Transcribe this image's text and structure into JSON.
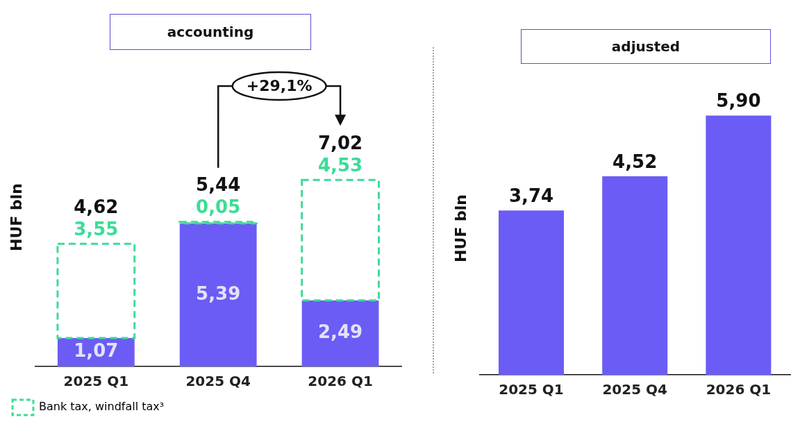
{
  "chart_data": [
    {
      "type": "bar",
      "title": "accounting",
      "ylabel": "HUF bln",
      "categories": [
        "2025 Q1",
        "2025 Q4",
        "2026 Q1"
      ],
      "stacked": true,
      "legend": "bottom left",
      "series": [
        {
          "color": "#6b5cf5",
          "values": [
            1.07,
            5.39,
            2.49
          ],
          "value_labels": [
            "1,07",
            "5,39",
            "2,49"
          ]
        },
        {
          "name": "Bank tax, windfall tax³",
          "color": "#3ddc97",
          "line_style": "dashed",
          "values": [
            3.55,
            0.05,
            4.53
          ],
          "value_labels": [
            "3,55",
            "0,05",
            "4,53"
          ]
        }
      ],
      "totals": [
        "4,62",
        "5,44",
        "7,02"
      ],
      "annotations": [
        "+29,1%"
      ]
    },
    {
      "type": "bar",
      "title": "adjusted",
      "ylabel": "HUF bln",
      "categories": [
        "2025 Q1",
        "2025 Q4",
        "2026 Q1"
      ],
      "color": "#6b5cf5",
      "values": [
        3.74,
        4.52,
        5.9
      ],
      "value_labels": [
        "3,74",
        "4,52",
        "5,90"
      ]
    }
  ]
}
